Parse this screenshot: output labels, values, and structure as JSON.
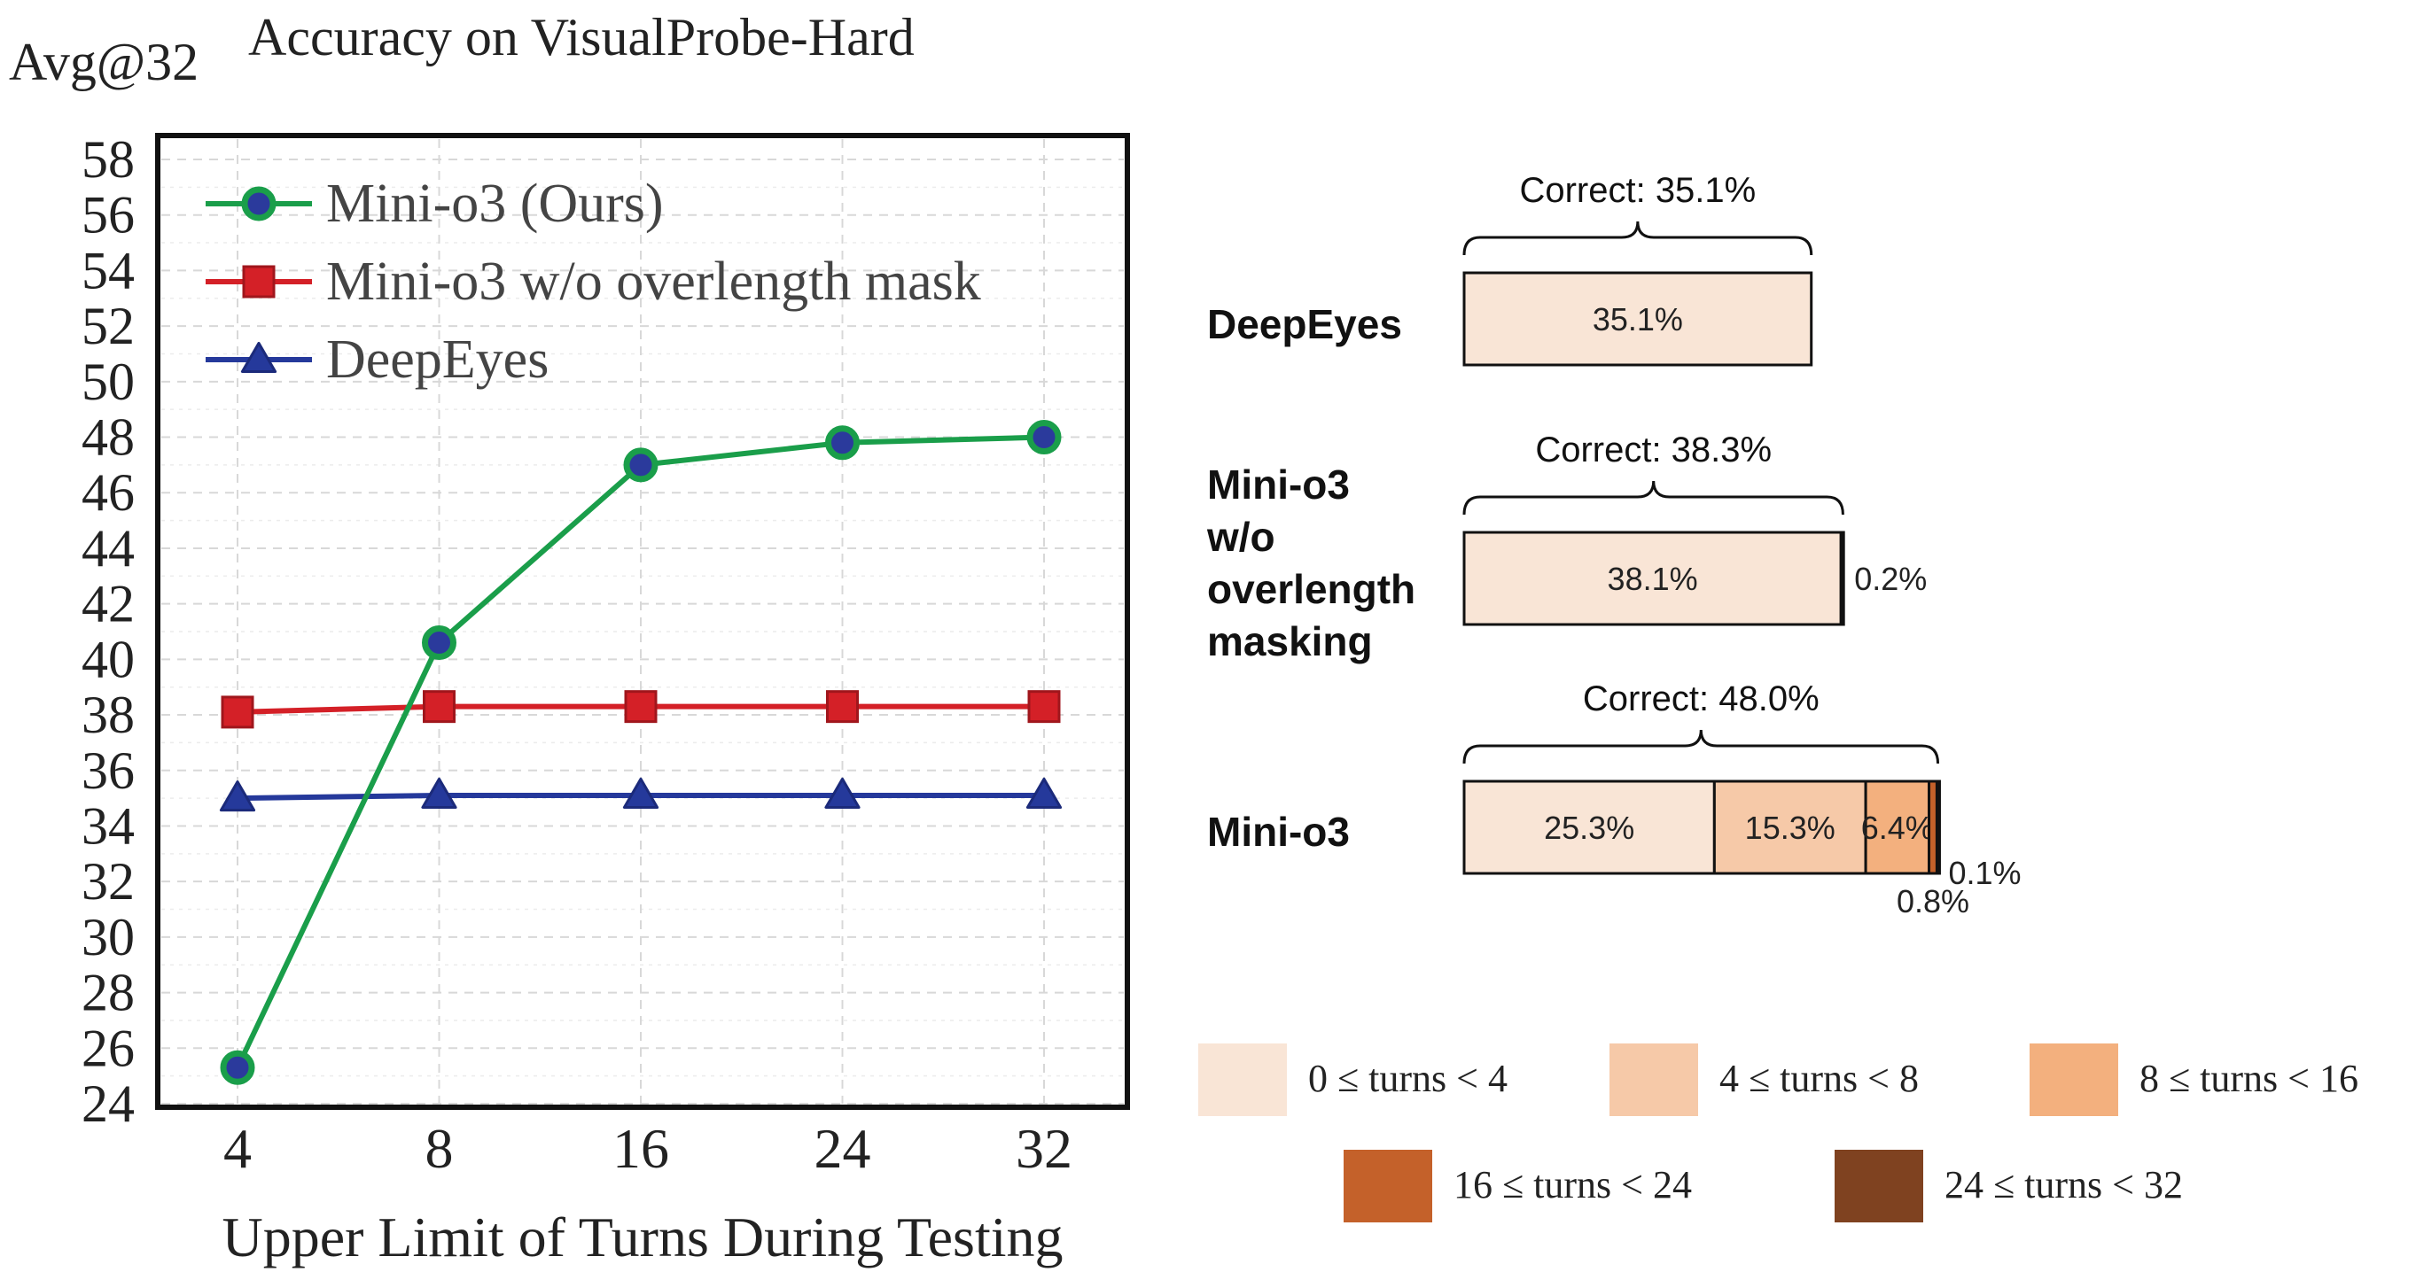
{
  "chart_data": [
    {
      "type": "line",
      "title": "Accuracy on VisualProbe-Hard",
      "ylabel": "Avg@32",
      "xlabel": "Upper Limit of Turns During Testing",
      "categories": [
        "4",
        "8",
        "16",
        "24",
        "32"
      ],
      "yticks": [
        "24",
        "26",
        "28",
        "30",
        "32",
        "34",
        "36",
        "38",
        "40",
        "42",
        "44",
        "46",
        "48",
        "50",
        "52",
        "54",
        "56",
        "58"
      ],
      "ylim": [
        24,
        58
      ],
      "grid": true,
      "legend_position": "top-left",
      "series": [
        {
          "name": "Mini-o3 (Ours)",
          "marker": "circle",
          "color": "#1a9e4a",
          "marker_fill": "#2b3a9c",
          "values": [
            25.3,
            40.6,
            47.0,
            47.8,
            48.0
          ]
        },
        {
          "name": "Mini-o3 w/o overlength mask",
          "marker": "square",
          "color": "#d42027",
          "marker_fill": "#d42027",
          "values": [
            38.1,
            38.3,
            38.3,
            38.3,
            38.3
          ]
        },
        {
          "name": "DeepEyes",
          "marker": "triangle",
          "color": "#25399b",
          "marker_fill": "#25399b",
          "values": [
            35.0,
            35.1,
            35.1,
            35.1,
            35.1
          ]
        }
      ]
    },
    {
      "type": "stacked_bar_horizontal",
      "xlim": [
        0,
        100
      ],
      "legend_position": "bottom",
      "segment_legend": [
        {
          "label": "0 ≤ turns < 4",
          "color": "#f9e5d6"
        },
        {
          "label": "4 ≤ turns < 8",
          "color": "#f6c9a8"
        },
        {
          "label": "8 ≤ turns < 16",
          "color": "#f3b07e"
        },
        {
          "label": "16 ≤ turns < 24",
          "color": "#c4612a"
        },
        {
          "label": "24 ≤ turns < 32",
          "color": "#7f4220"
        }
      ],
      "bars": [
        {
          "name_lines": [
            "DeepEyes"
          ],
          "correct_label": "Correct: 35.1%",
          "values": [
            35.1
          ],
          "labels": [
            "35.1%"
          ]
        },
        {
          "name_lines": [
            "Mini-o3",
            "w/o",
            "overlength",
            "masking"
          ],
          "correct_label": "Correct: 38.3%",
          "values": [
            38.1,
            0.2
          ],
          "labels": [
            "38.1%",
            "0.2%"
          ]
        },
        {
          "name_lines": [
            "Mini-o3"
          ],
          "correct_label": "Correct: 48.0%",
          "values": [
            25.3,
            15.3,
            6.4,
            0.8,
            0.1
          ],
          "labels": [
            "25.3%",
            "15.3%",
            "6.4%",
            "0.8%",
            "0.1%"
          ]
        }
      ]
    }
  ]
}
